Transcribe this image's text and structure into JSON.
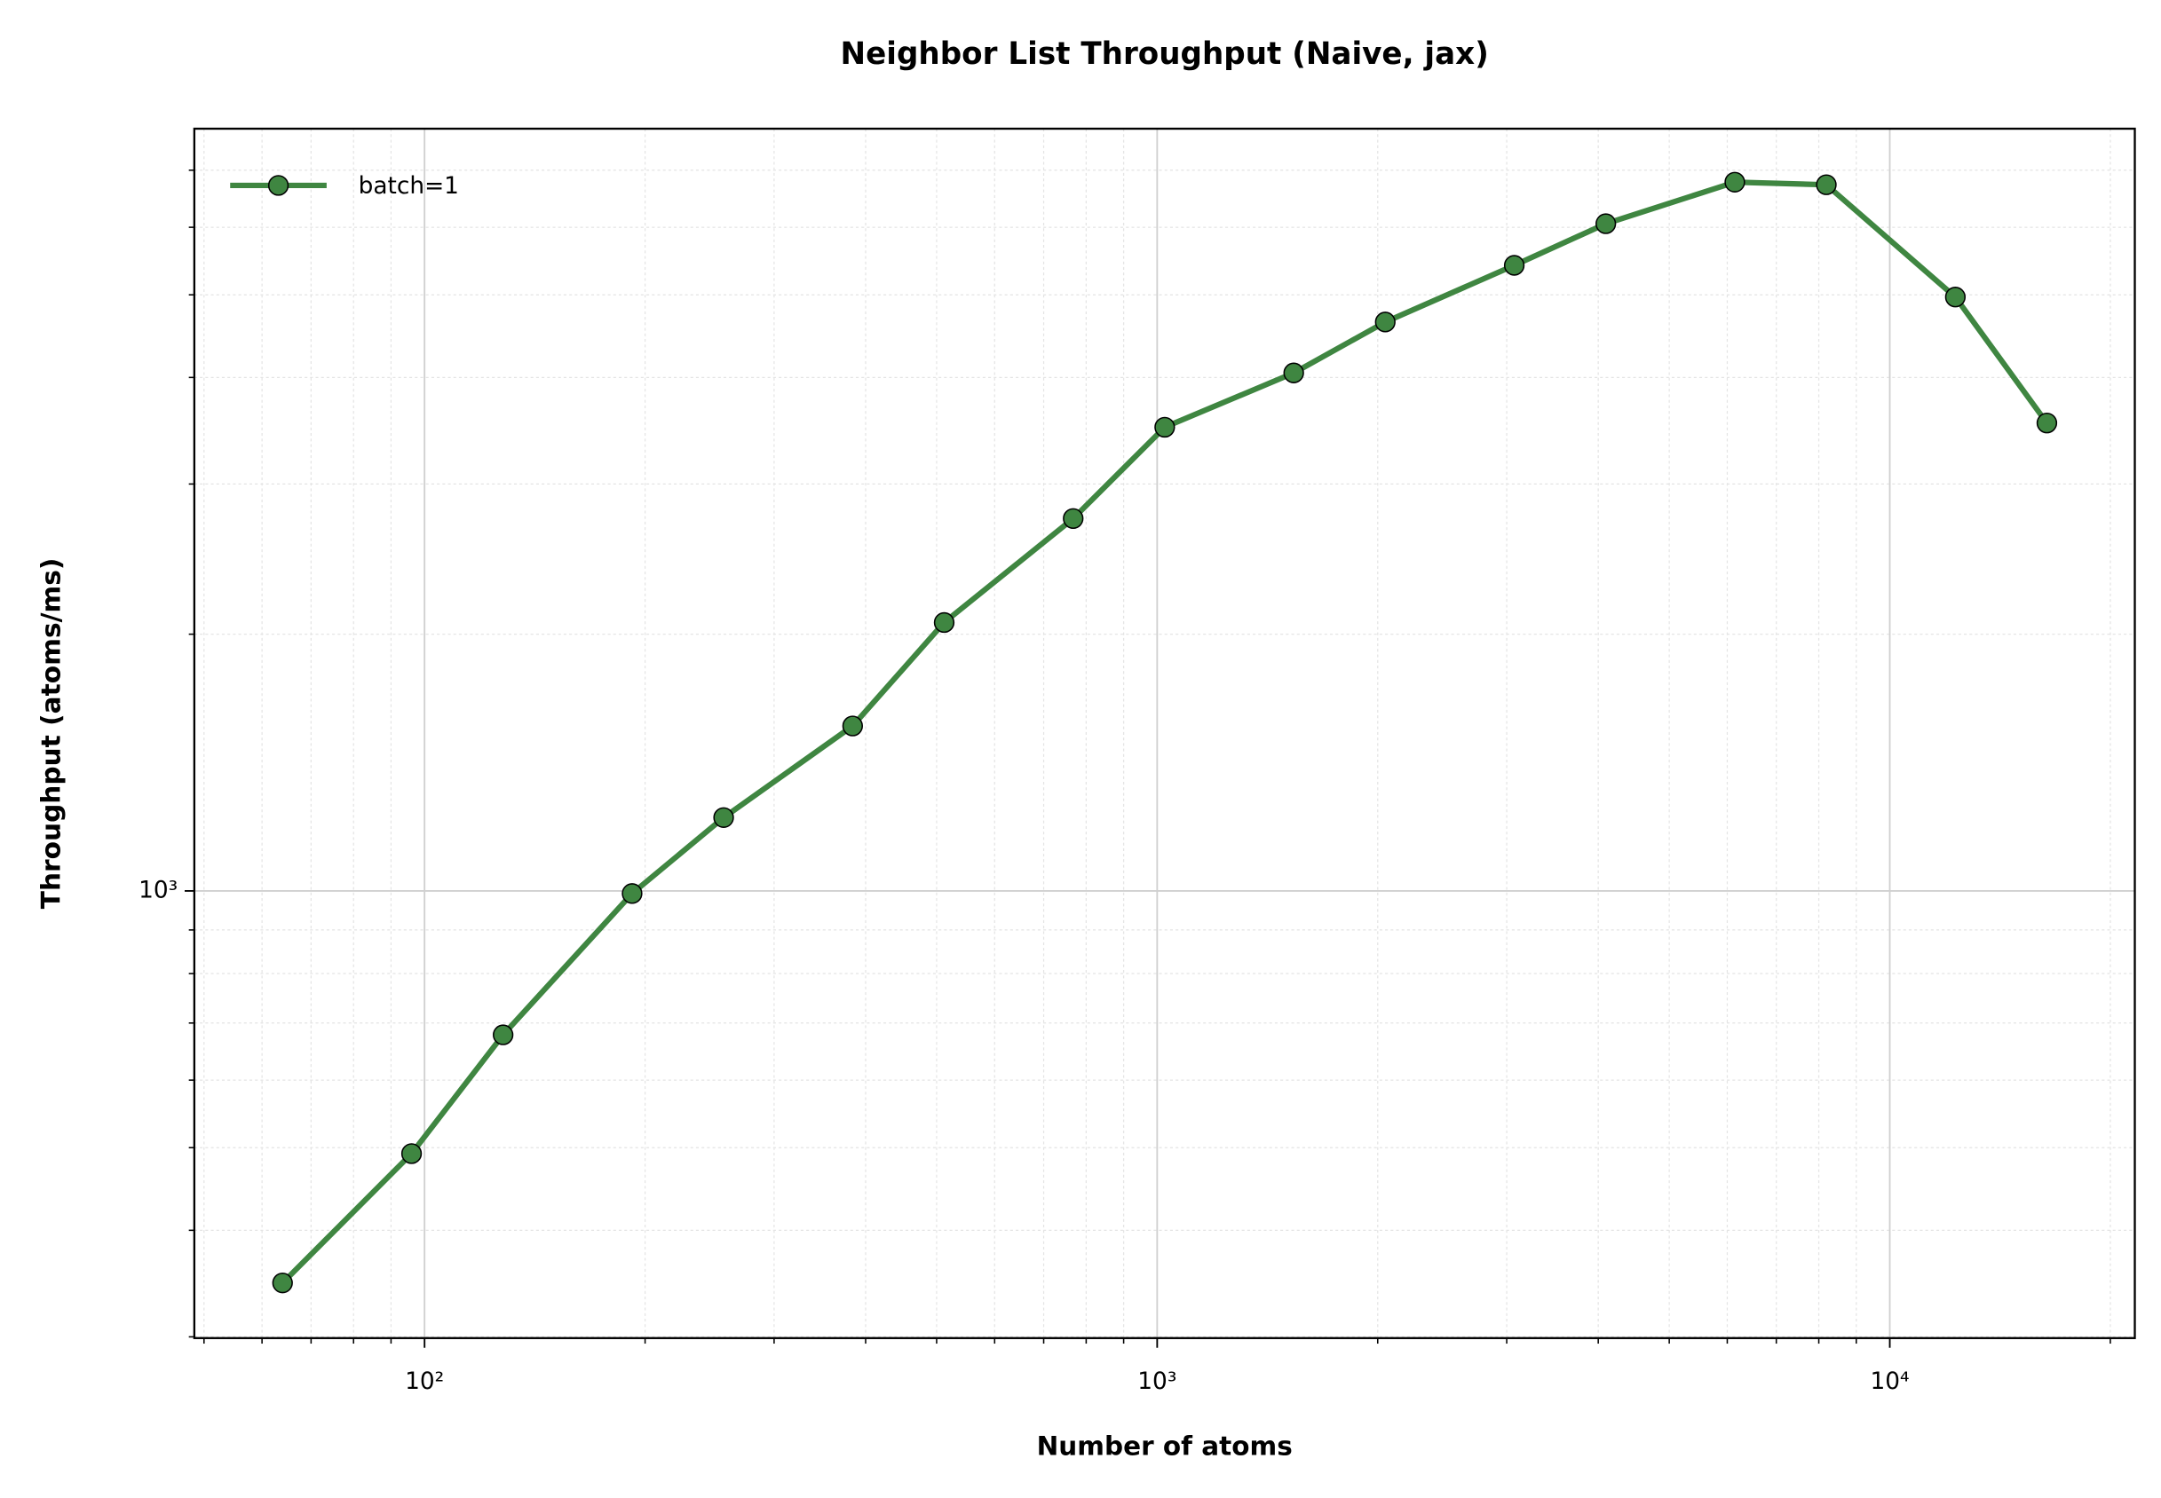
{
  "chart_data": {
    "type": "line",
    "title": "Neighbor List Throughput (Naive, jax)",
    "xlabel": "Number of atoms",
    "ylabel": "Throughput (atoms/ms)",
    "x": [
      64,
      96,
      128,
      192,
      256,
      384,
      512,
      768,
      1024,
      1536,
      2048,
      3072,
      4096,
      6144,
      8192,
      12288,
      16384
    ],
    "series": [
      {
        "name": "batch=1",
        "color": "#3f8641",
        "values": [
          347,
          492,
          678,
          993,
          1219,
          1561,
          2064,
          2733,
          3497,
          4049,
          4646,
          5414,
          6058,
          6777,
          6730,
          4970,
          3537
        ]
      }
    ],
    "xscale": "log",
    "yscale": "log",
    "xlim": [
      48.5,
      21600
    ],
    "ylim": [
      299,
      7830
    ],
    "xticks": [
      {
        "value": 100,
        "label": "10²"
      },
      {
        "value": 1000,
        "label": "10³"
      },
      {
        "value": 10000,
        "label": "10⁴"
      }
    ],
    "yticks": [
      {
        "value": 1000,
        "label": "10³"
      }
    ],
    "xminorticks": [
      50,
      60,
      70,
      80,
      90,
      200,
      300,
      400,
      500,
      600,
      700,
      800,
      900,
      2000,
      3000,
      4000,
      5000,
      6000,
      7000,
      8000,
      9000,
      20000
    ],
    "yminorticks": [
      300,
      400,
      500,
      600,
      700,
      800,
      900,
      2000,
      3000,
      4000,
      5000,
      6000,
      7000
    ],
    "grid": true,
    "legend": "upper left"
  }
}
